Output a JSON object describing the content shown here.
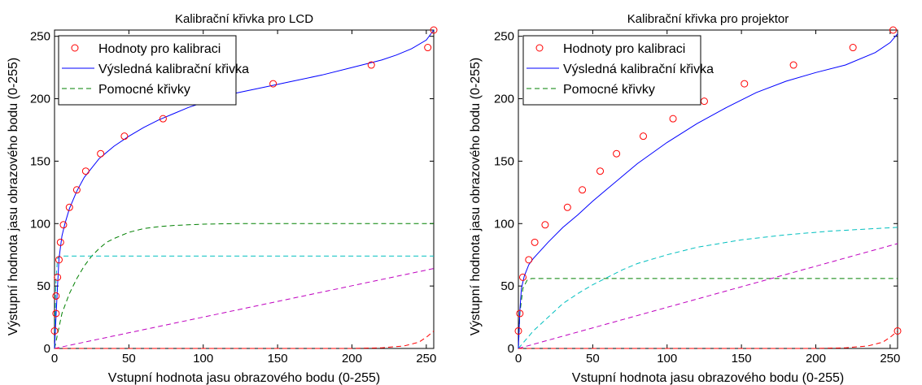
{
  "chart_data": [
    {
      "type": "line",
      "title": "Kalibrační křivka pro LCD",
      "xlabel": "Vstupní hodnota jasu obrazového bodu (0-255)",
      "ylabel": "Výstupní hodnota jasu obrazového bodu (0-255)",
      "xlim": [
        0,
        255
      ],
      "ylim": [
        0,
        255
      ],
      "xticks": [
        0,
        50,
        100,
        150,
        200,
        250
      ],
      "yticks": [
        0,
        50,
        100,
        150,
        200,
        250
      ],
      "grid": false,
      "legend_position": "top-left",
      "legend": [
        {
          "label": "Hodnoty pro kalibraci",
          "marker": "circle",
          "color": "#ff0000"
        },
        {
          "label": "Výsledná kalibrační křivka",
          "line": "solid",
          "color": "#0000ff"
        },
        {
          "label": "Pomocné křivky",
          "line": "dashed",
          "color": "#008000"
        }
      ],
      "points": {
        "name": "Hodnoty pro kalibraci",
        "color": "#ff0000",
        "x": [
          0,
          1,
          1,
          2,
          3,
          4,
          6,
          10,
          15,
          21,
          31,
          47,
          73,
          101,
          147,
          213,
          251,
          255
        ],
        "y": [
          14,
          28,
          42,
          57,
          71,
          85,
          99,
          113,
          127,
          142,
          156,
          170,
          184,
          198,
          212,
          227,
          241,
          255
        ]
      },
      "result_curve": {
        "name": "Výsledná kalibrační křivka",
        "color": "#0000ff",
        "x": [
          0,
          1,
          2,
          3,
          5,
          7,
          10,
          15,
          20,
          30,
          40,
          50,
          60,
          70,
          80,
          90,
          100,
          110,
          120,
          140,
          160,
          180,
          200,
          210,
          220,
          230,
          240,
          250,
          255
        ],
        "y": [
          0,
          25,
          50,
          72,
          90,
          100,
          112,
          126,
          137,
          152,
          162,
          170,
          177,
          183,
          188,
          193,
          197,
          201,
          204,
          209,
          214,
          219,
          225,
          228,
          231,
          235,
          240,
          247,
          255
        ]
      },
      "helper_curves": [
        {
          "color": "#008000",
          "x": [
            0,
            5,
            10,
            15,
            20,
            25,
            30,
            35,
            40,
            50,
            60,
            70,
            80,
            100,
            120,
            150,
            200,
            255
          ],
          "y": [
            0,
            28,
            44,
            56,
            66,
            74,
            80,
            85,
            88,
            93,
            96,
            97.5,
            98.5,
            99.5,
            100,
            100,
            100,
            100
          ]
        },
        {
          "color": "#00bfbf",
          "x": [
            0,
            1,
            2,
            3,
            255
          ],
          "y": [
            0,
            55,
            72,
            74,
            74
          ]
        },
        {
          "color": "#bf00bf",
          "x": [
            0,
            255
          ],
          "y": [
            0,
            64
          ]
        },
        {
          "color": "#ff0000",
          "x": [
            0,
            200,
            220,
            235,
            245,
            250,
            255
          ],
          "y": [
            0,
            0,
            0.5,
            2,
            5,
            9,
            14
          ]
        }
      ]
    },
    {
      "type": "line",
      "title": "Kalibrační křivka pro projektor",
      "xlabel": "Vstupní hodnota jasu obrazového bodu (0-255)",
      "ylabel": "Výstupní hodnota jasu obrazového bodu (0-255)",
      "xlim": [
        0,
        255
      ],
      "ylim": [
        0,
        255
      ],
      "xticks": [
        0,
        50,
        100,
        150,
        200,
        250
      ],
      "yticks": [
        0,
        50,
        100,
        150,
        200,
        250
      ],
      "grid": false,
      "legend_position": "top-left",
      "legend": [
        {
          "label": "Hodnoty pro kalibraci",
          "marker": "circle",
          "color": "#ff0000"
        },
        {
          "label": "Výsledná kalibrační křivka",
          "line": "solid",
          "color": "#0000ff"
        },
        {
          "label": "Pomocné křivky",
          "line": "dashed",
          "color": "#008000"
        }
      ],
      "points": {
        "name": "Hodnoty pro kalibraci",
        "color": "#ff0000",
        "x": [
          0,
          1,
          3,
          7,
          11,
          18,
          33,
          43,
          55,
          66,
          84,
          104,
          125,
          152,
          185,
          225,
          252,
          255
        ],
        "y": [
          14,
          28,
          57,
          71,
          85,
          99,
          113,
          127,
          142,
          156,
          170,
          184,
          198,
          212,
          227,
          241,
          255,
          14
        ]
      },
      "result_curve": {
        "name": "Výsledná kalibrační křivka",
        "color": "#0000ff",
        "x": [
          0,
          1,
          2,
          4,
          7,
          10,
          20,
          30,
          40,
          50,
          60,
          70,
          80,
          100,
          120,
          140,
          160,
          180,
          200,
          220,
          240,
          250,
          255
        ],
        "y": [
          0,
          30,
          48,
          58,
          67,
          72,
          85,
          97,
          107,
          118,
          128,
          138,
          148,
          165,
          180,
          193,
          205,
          214,
          221,
          227,
          237,
          245,
          252
        ]
      },
      "helper_curves": [
        {
          "color": "#008000",
          "x": [
            0,
            1,
            3,
            6,
            9,
            255
          ],
          "y": [
            0,
            28,
            48,
            55,
            56,
            56
          ]
        },
        {
          "color": "#00bfbf",
          "x": [
            0,
            10,
            20,
            30,
            40,
            50,
            60,
            70,
            80,
            100,
            120,
            150,
            180,
            210,
            240,
            255
          ],
          "y": [
            0,
            14,
            25,
            36,
            44,
            51,
            57,
            63,
            68,
            75,
            81,
            87,
            91,
            94,
            96,
            97
          ]
        },
        {
          "color": "#bf00bf",
          "x": [
            0,
            255
          ],
          "y": [
            0,
            84
          ]
        },
        {
          "color": "#ff0000",
          "x": [
            0,
            200,
            220,
            235,
            245,
            250,
            255
          ],
          "y": [
            0,
            0,
            0.5,
            2,
            5,
            9,
            14
          ]
        }
      ]
    }
  ]
}
